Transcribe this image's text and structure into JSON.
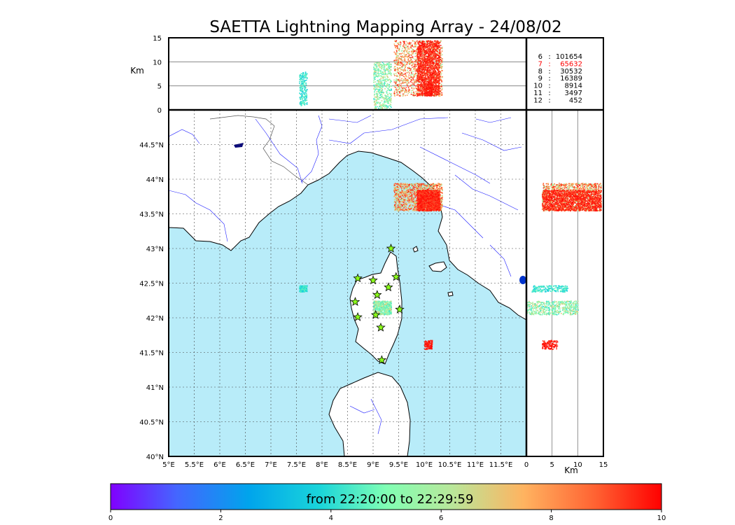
{
  "title": "SAETTA Lightning Mapping Array - 24/08/02",
  "colors": {
    "sea": "#b8ecf9",
    "coast": "#000000",
    "rivers": "#1a1aff",
    "borders": "#555555",
    "grid": "#444444",
    "station_fill": "#8cff1a",
    "stats_highlight": "#ff0000"
  },
  "chart_data": {
    "type": "scatter",
    "map": {
      "x_ticks": [
        "5°E",
        "5.5°E",
        "6°E",
        "6.5°E",
        "7°E",
        "7.5°E",
        "8°E",
        "8.5°E",
        "9°E",
        "9.5°E",
        "10°E",
        "10.5°E",
        "11°E",
        "11.5°E"
      ],
      "y_ticks": [
        "40°N",
        "40.5°N",
        "41°N",
        "41.5°N",
        "42°N",
        "42.5°N",
        "43°N",
        "43.5°N",
        "44°N",
        "44.5°N"
      ],
      "xlim": [
        5.0,
        12.0
      ],
      "ylim": [
        40.0,
        45.0
      ],
      "grid": true
    },
    "altitude_top": {
      "ylabel": "Km",
      "y_ticks": [
        "0",
        "5",
        "10",
        "15"
      ],
      "ylim": [
        0,
        15
      ]
    },
    "altitude_side": {
      "xlabel": "Km",
      "x_ticks": [
        "0",
        "5",
        "10",
        "15"
      ],
      "xlim": [
        0,
        15
      ]
    },
    "stats": [
      {
        "min": "6",
        "count": "101654"
      },
      {
        "min": "7",
        "count": "65632"
      },
      {
        "min": "8",
        "count": "30532"
      },
      {
        "min": "9",
        "count": "16389"
      },
      {
        "min": "10",
        "count": "8914"
      },
      {
        "min": "11",
        "count": "3497"
      },
      {
        "min": "12",
        "count": "452"
      }
    ],
    "highlight_row": 1,
    "colorbar": {
      "label": "from 22:20:00 to 22:29:59",
      "ticks": [
        "0",
        "2",
        "4",
        "6",
        "8",
        "10"
      ],
      "range": [
        0,
        10
      ]
    },
    "stations": [
      {
        "lon": 9.35,
        "lat": 43.0
      },
      {
        "lon": 8.7,
        "lat": 42.57
      },
      {
        "lon": 9.0,
        "lat": 42.54
      },
      {
        "lon": 9.45,
        "lat": 42.59
      },
      {
        "lon": 9.3,
        "lat": 42.44
      },
      {
        "lon": 9.08,
        "lat": 42.33
      },
      {
        "lon": 8.65,
        "lat": 42.23
      },
      {
        "lon": 9.52,
        "lat": 42.12
      },
      {
        "lon": 8.7,
        "lat": 42.01
      },
      {
        "lon": 9.05,
        "lat": 42.04
      },
      {
        "lon": 9.15,
        "lat": 41.86
      },
      {
        "lon": 9.17,
        "lat": 41.39
      }
    ],
    "clusters": [
      {
        "lon_range": [
          9.4,
          10.35
        ],
        "lat_range": [
          43.55,
          43.95
        ],
        "time_range": [
          5.5,
          9.9
        ],
        "alt_range": [
          3,
          14.5
        ],
        "density": 1
      },
      {
        "lon_range": [
          9.85,
          10.3
        ],
        "lat_range": [
          43.55,
          43.85
        ],
        "time_range": [
          9.0,
          10.0
        ],
        "alt_range": [
          3,
          14.5
        ],
        "density": 1
      },
      {
        "lon_range": [
          9.0,
          9.35
        ],
        "lat_range": [
          42.05,
          42.25
        ],
        "time_range": [
          4.0,
          7.0
        ],
        "alt_range": [
          0,
          10
        ],
        "density": 0.4
      },
      {
        "lon_range": [
          7.55,
          7.7
        ],
        "lat_range": [
          42.38,
          42.47
        ],
        "time_range": [
          3.5,
          4.8
        ],
        "alt_range": [
          1,
          8
        ],
        "density": 0.15
      },
      {
        "lon_range": [
          10.0,
          10.15
        ],
        "lat_range": [
          41.55,
          41.68
        ],
        "time_range": [
          9.3,
          10.0
        ],
        "alt_range": [
          3,
          6
        ],
        "density": 0.1
      }
    ]
  }
}
